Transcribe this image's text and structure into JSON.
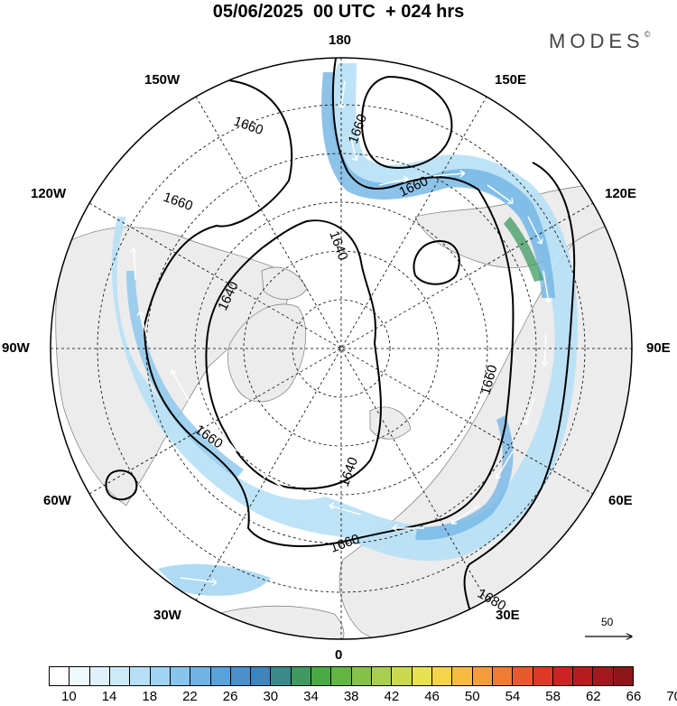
{
  "title": "05/06/2025  00 UTC  + 024 hrs",
  "brand": "MODES",
  "brand_mark": "©",
  "longitude_labels": {
    "lon_180": "180",
    "lon_150e": "150E",
    "lon_120e": "120E",
    "lon_90e": "90E",
    "lon_60e": "60E",
    "lon_30e": "30E",
    "lon_0": "0",
    "lon_30w": "30W",
    "lon_60w": "60W",
    "lon_90w": "90W",
    "lon_120w": "120W",
    "lon_150w": "150W"
  },
  "contour_labels": [
    "1660",
    "1660",
    "1660",
    "1660",
    "1640",
    "1640",
    "1640",
    "1660",
    "1660",
    "1660",
    "1680"
  ],
  "wind_scale": {
    "label": "50"
  },
  "colorbar": {
    "colors": [
      "#ffffff",
      "#eef8fd",
      "#dff2fb",
      "#cdeaf9",
      "#b7e0f6",
      "#a0d4f2",
      "#88c5ec",
      "#70b4e4",
      "#5aa2da",
      "#4a90cd",
      "#3f84bd",
      "#3b8a8a",
      "#3f9960",
      "#4aa845",
      "#63b543",
      "#86c24a",
      "#a8cf4f",
      "#c9da4f",
      "#e8e24f",
      "#f6d44a",
      "#f8bb41",
      "#f59d3b",
      "#f07c34",
      "#e8592d",
      "#dc3a27",
      "#cc2422",
      "#b61b1f",
      "#a3181c",
      "#8e151a"
    ],
    "tick_labels": [
      "10",
      "14",
      "18",
      "22",
      "26",
      "30",
      "34",
      "38",
      "42",
      "46",
      "50",
      "54",
      "58",
      "62",
      "66",
      "70"
    ]
  }
}
